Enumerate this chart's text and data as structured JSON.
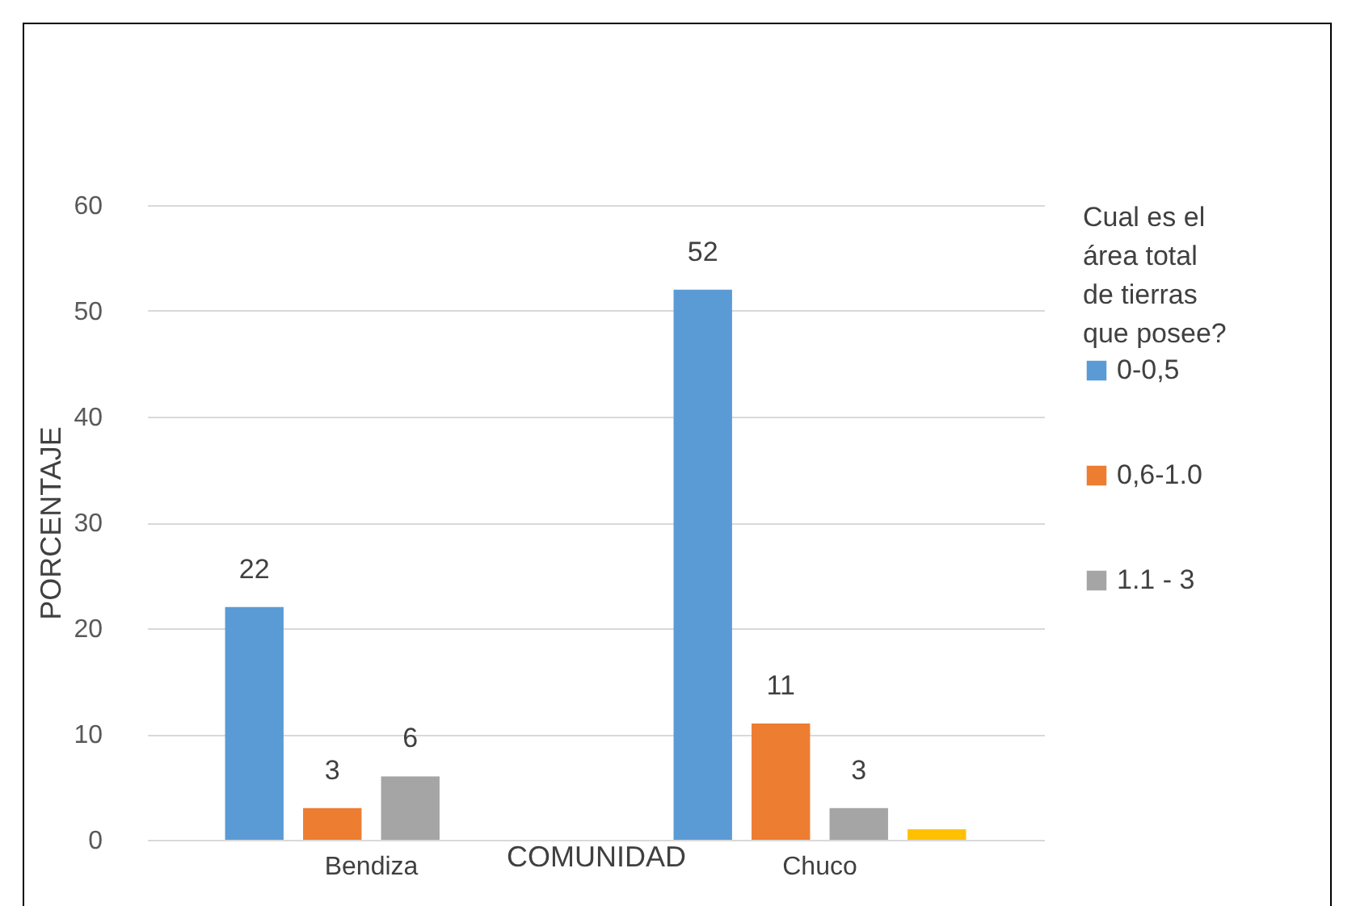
{
  "chart_data": {
    "type": "bar",
    "xlabel": "COMUNIDAD",
    "ylabel": "PORCENTAJE",
    "legend_title": "Cual es el área total de tierras que posee?",
    "categories": [
      "Bendiza",
      "Chuco"
    ],
    "series": [
      {
        "name": "0-0,5",
        "color": "#5b9bd5",
        "values": [
          22,
          52
        ],
        "value_labels": [
          "22",
          "52"
        ]
      },
      {
        "name": "0,6-1.0",
        "color": "#ed7d31",
        "values": [
          3,
          11
        ],
        "value_labels": [
          "3",
          "11"
        ]
      },
      {
        "name": "1.1 - 3",
        "color": "#a5a5a5",
        "values": [
          6,
          3
        ],
        "value_labels": [
          "6",
          "3"
        ]
      },
      {
        "color": "#ffc000",
        "values": [
          null,
          1
        ]
      }
    ],
    "ylim": [
      0,
      60
    ],
    "yticks": [
      0,
      10,
      20,
      30,
      40,
      50,
      60
    ],
    "grid": "y",
    "legend": "right"
  }
}
